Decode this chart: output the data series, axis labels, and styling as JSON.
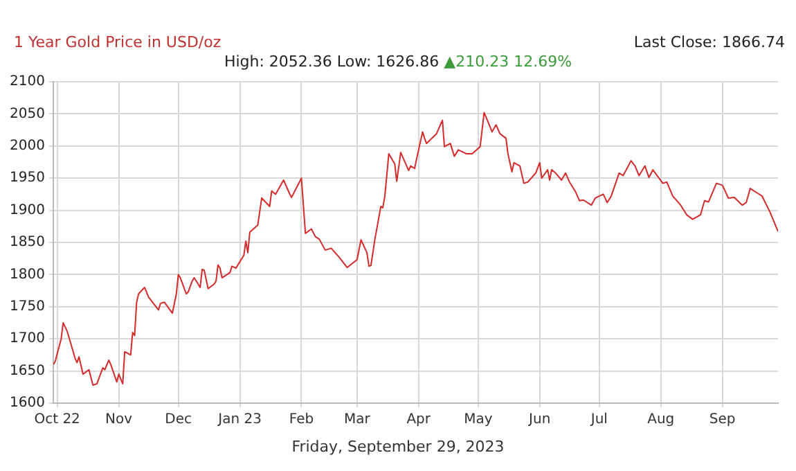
{
  "chart_data": {
    "type": "line",
    "title": "1 Year Gold Price in USD/oz",
    "subtitle": "High: 2052.36 Low: 1626.86",
    "annotations": [
      "▲210.23 12.69%",
      "Last Close: 1866.74",
      "Friday, September 29, 2023"
    ],
    "x": [
      "2022-09-29",
      "2022-09-30",
      "2022-10-03",
      "2022-10-04",
      "2022-10-06",
      "2022-10-10",
      "2022-10-11",
      "2022-10-12",
      "2022-10-14",
      "2022-10-17",
      "2022-10-19",
      "2022-10-21",
      "2022-10-24",
      "2022-10-25",
      "2022-10-27",
      "2022-10-28",
      "2022-10-31",
      "2022-11-01",
      "2022-11-03",
      "2022-11-04",
      "2022-11-07",
      "2022-11-08",
      "2022-11-09",
      "2022-11-10",
      "2022-11-11",
      "2022-11-14",
      "2022-11-16",
      "2022-11-21",
      "2022-11-22",
      "2022-11-24",
      "2022-11-28",
      "2022-11-30",
      "2022-12-01",
      "2022-12-02",
      "2022-12-05",
      "2022-12-06",
      "2022-12-08",
      "2022-12-09",
      "2022-12-12",
      "2022-12-13",
      "2022-12-14",
      "2022-12-16",
      "2022-12-19",
      "2022-12-20",
      "2022-12-21",
      "2022-12-22",
      "2022-12-23",
      "2022-12-27",
      "2022-12-28",
      "2022-12-30",
      "2023-01-03",
      "2023-01-04",
      "2023-01-05",
      "2023-01-06",
      "2023-01-10",
      "2023-01-12",
      "2023-01-16",
      "2023-01-17",
      "2023-01-19",
      "2023-01-23",
      "2023-01-26",
      "2023-01-27",
      "2023-02-01",
      "2023-02-03",
      "2023-02-06",
      "2023-02-08",
      "2023-02-10",
      "2023-02-13",
      "2023-02-16",
      "2023-02-20",
      "2023-02-24",
      "2023-03-01",
      "2023-03-03",
      "2023-03-06",
      "2023-03-07",
      "2023-03-08",
      "2023-03-10",
      "2023-03-13",
      "2023-03-14",
      "2023-03-15",
      "2023-03-17",
      "2023-03-20",
      "2023-03-21",
      "2023-03-23",
      "2023-03-27",
      "2023-03-28",
      "2023-03-30",
      "2023-03-31",
      "2023-04-03",
      "2023-04-04",
      "2023-04-05",
      "2023-04-10",
      "2023-04-13",
      "2023-04-14",
      "2023-04-17",
      "2023-04-19",
      "2023-04-21",
      "2023-04-25",
      "2023-04-28",
      "2023-05-02",
      "2023-05-04",
      "2023-05-05",
      "2023-05-08",
      "2023-05-10",
      "2023-05-12",
      "2023-05-15",
      "2023-05-16",
      "2023-05-18",
      "2023-05-19",
      "2023-05-22",
      "2023-05-24",
      "2023-05-26",
      "2023-05-30",
      "2023-06-01",
      "2023-06-02",
      "2023-06-05",
      "2023-06-06",
      "2023-06-07",
      "2023-06-09",
      "2023-06-12",
      "2023-06-14",
      "2023-06-16",
      "2023-06-19",
      "2023-06-21",
      "2023-06-23",
      "2023-06-27",
      "2023-06-29",
      "2023-07-03",
      "2023-07-05",
      "2023-07-07",
      "2023-07-11",
      "2023-07-13",
      "2023-07-17",
      "2023-07-19",
      "2023-07-21",
      "2023-07-24",
      "2023-07-26",
      "2023-07-28",
      "2023-08-02",
      "2023-08-04",
      "2023-08-07",
      "2023-08-11",
      "2023-08-14",
      "2023-08-17",
      "2023-08-21",
      "2023-08-23",
      "2023-08-25",
      "2023-08-29",
      "2023-09-01",
      "2023-09-04",
      "2023-09-07",
      "2023-09-11",
      "2023-09-13",
      "2023-09-15",
      "2023-09-19",
      "2023-09-21",
      "2023-09-25",
      "2023-09-29"
    ],
    "series": [
      {
        "color": "#d42a2a",
        "values": [
          1660,
          1665,
          1700,
          1725,
          1712,
          1670,
          1663,
          1672,
          1645,
          1652,
          1628,
          1630,
          1655,
          1652,
          1667,
          1660,
          1633,
          1645,
          1630,
          1680,
          1675,
          1710,
          1705,
          1757,
          1770,
          1780,
          1765,
          1745,
          1755,
          1757,
          1740,
          1770,
          1800,
          1795,
          1770,
          1773,
          1790,
          1795,
          1780,
          1808,
          1807,
          1778,
          1785,
          1790,
          1815,
          1810,
          1795,
          1803,
          1813,
          1810,
          1830,
          1852,
          1834,
          1866,
          1877,
          1919,
          1906,
          1930,
          1925,
          1947,
          1926,
          1920,
          1950,
          1864,
          1871,
          1859,
          1855,
          1838,
          1841,
          1827,
          1811,
          1823,
          1854,
          1834,
          1813,
          1814,
          1855,
          1906,
          1904,
          1922,
          1988,
          1972,
          1945,
          1990,
          1962,
          1969,
          1965,
          1980,
          2022,
          2012,
          2004,
          2019,
          2040,
          1999,
          2004,
          1984,
          1994,
          1988,
          1988,
          1999,
          2052,
          2045,
          2022,
          2033,
          2019,
          2012,
          1988,
          1960,
          1974,
          1969,
          1942,
          1944,
          1958,
          1974,
          1950,
          1963,
          1947,
          1963,
          1958,
          1947,
          1958,
          1944,
          1929,
          1915,
          1916,
          1908,
          1919,
          1925,
          1912,
          1922,
          1958,
          1954,
          1977,
          1969,
          1954,
          1969,
          1951,
          1963,
          1942,
          1944,
          1922,
          1908,
          1893,
          1886,
          1893,
          1915,
          1913,
          1942,
          1939,
          1919,
          1920,
          1908,
          1912,
          1934,
          1926,
          1922,
          1897,
          1867
        ]
      }
    ],
    "xlim": [
      "2022-09-29",
      "2023-09-29"
    ],
    "xticks": [
      {
        "value": "2022-10-01",
        "label": "Oct 22"
      },
      {
        "value": "2022-11-01",
        "label": "Nov"
      },
      {
        "value": "2022-12-01",
        "label": "Dec"
      },
      {
        "value": "2023-01-01",
        "label": "Jan 23"
      },
      {
        "value": "2023-02-01",
        "label": "Feb"
      },
      {
        "value": "2023-03-01",
        "label": "Mar"
      },
      {
        "value": "2023-04-01",
        "label": "Apr"
      },
      {
        "value": "2023-05-01",
        "label": "May"
      },
      {
        "value": "2023-06-01",
        "label": "Jun"
      },
      {
        "value": "2023-07-01",
        "label": "Jul"
      },
      {
        "value": "2023-08-01",
        "label": "Aug"
      },
      {
        "value": "2023-09-01",
        "label": "Sep"
      }
    ],
    "ylim": [
      1600,
      2100
    ],
    "yticks": [
      1600,
      1650,
      1700,
      1750,
      1800,
      1850,
      1900,
      1950,
      2000,
      2050,
      2100
    ],
    "grid": true,
    "legend": false,
    "marker": "none",
    "line_style": "solid"
  }
}
